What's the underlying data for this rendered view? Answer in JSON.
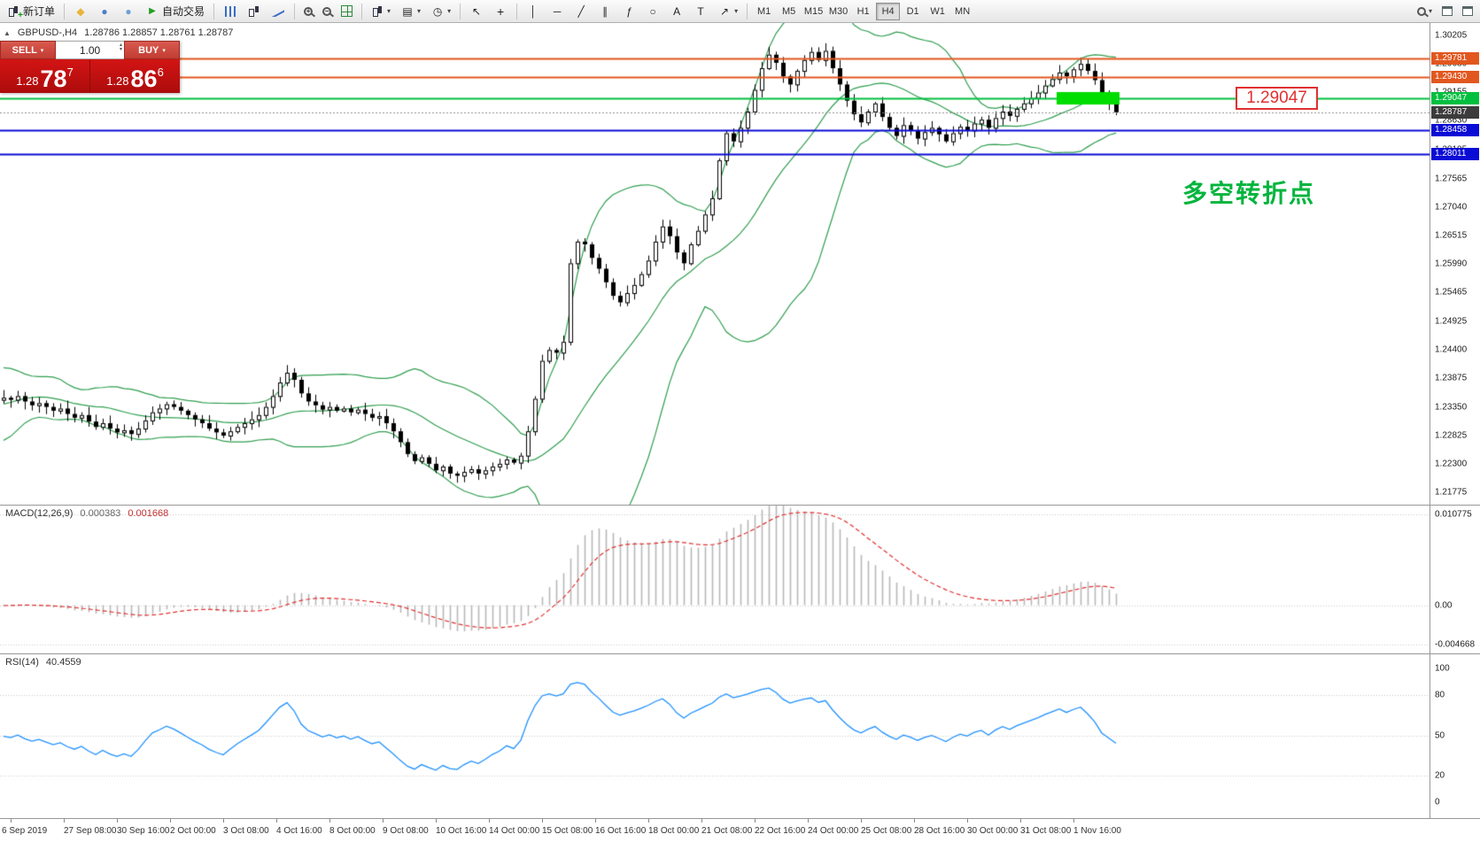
{
  "toolbar": {
    "new_order_label": "新订单",
    "auto_trading_label": "自动交易",
    "timeframes": [
      "M1",
      "M5",
      "M15",
      "M30",
      "H1",
      "H4",
      "D1",
      "W1",
      "MN"
    ],
    "active_timeframe": "H4"
  },
  "icons": {
    "plus": "+",
    "minus": "−",
    "diamond": "◆",
    "circle": "●",
    "play": "▶",
    "caret": "▾",
    "cursor": "↖",
    "crosshair": "+",
    "vline": "│",
    "hline": "─",
    "trendline": "╱",
    "channel": "∥",
    "fibonacci": "ƒ",
    "ellipse": "○",
    "text": "A",
    "text_label": "T",
    "arrow": "↗",
    "clock": "◷",
    "layout": "▤",
    "spin_up": "▴",
    "spin_down": "▾",
    "expander": "▲"
  },
  "quote_panel": {
    "symbol_info": "GBPUSD-,H4",
    "ohlc_text": "1.28786 1.28857 1.28761 1.28787",
    "sell_label": "SELL",
    "buy_label": "BUY",
    "lot_size": "1.00",
    "sell_price_small": "1.28",
    "sell_price_big": "78",
    "sell_price_sup": "7",
    "buy_price_small": "1.28",
    "buy_price_big": "86",
    "buy_price_sup": "6"
  },
  "annotations": {
    "callout_price": "1.29047",
    "chinese_note": "多空转折点",
    "chinese_note_color": "#00b43c"
  },
  "macd_panel": {
    "label": "MACD(12,26,9)",
    "value_main": "0.000383",
    "value_signal": "0.001668",
    "ticks": [
      "0.010775",
      "0.00",
      "-0.004668"
    ]
  },
  "rsi_panel": {
    "label": "RSI(14)",
    "value": "40.4559",
    "ticks": [
      "100",
      "80",
      "50",
      "20",
      "0"
    ]
  },
  "time_axis": {
    "labels": [
      "6 Sep 2019",
      "27 Sep 08:00",
      "30 Sep 16:00",
      "2 Oct 00:00",
      "3 Oct 08:00",
      "4 Oct 16:00",
      "8 Oct 00:00",
      "9 Oct 08:00",
      "10 Oct 16:00",
      "14 Oct 00:00",
      "15 Oct 08:00",
      "16 Oct 16:00",
      "18 Oct 00:00",
      "21 Oct 08:00",
      "22 Oct 16:00",
      "24 Oct 00:00",
      "25 Oct 08:00",
      "28 Oct 16:00",
      "30 Oct 00:00",
      "31 Oct 08:00",
      "1 Nov 16:00"
    ]
  },
  "chart_data": {
    "type": "candlestick",
    "title": "GBPUSD-,H4",
    "symbol": "GBPUSD",
    "timeframe": "H4",
    "price_range": [
      1.21775,
      1.30205
    ],
    "y_ticks": [
      1.30205,
      1.2968,
      1.29155,
      1.2863,
      1.28105,
      1.27565,
      1.2704,
      1.26515,
      1.2599,
      1.25465,
      1.24925,
      1.244,
      1.23875,
      1.2335,
      1.22825,
      1.223,
      1.21775
    ],
    "closes": [
      1.2352,
      1.2348,
      1.2355,
      1.2345,
      1.2338,
      1.2342,
      1.2335,
      1.2328,
      1.2332,
      1.2322,
      1.2315,
      1.232,
      1.2308,
      1.2298,
      1.2305,
      1.2295,
      1.2288,
      1.2292,
      1.2285,
      1.2295,
      1.231,
      1.2325,
      1.2332,
      1.234,
      1.2335,
      1.2328,
      1.232,
      1.2312,
      1.2305,
      1.2295,
      1.2288,
      1.2282,
      1.229,
      1.2298,
      1.2305,
      1.2312,
      1.232,
      1.2335,
      1.2355,
      1.238,
      1.2398,
      1.2385,
      1.236,
      1.2345,
      1.2338,
      1.233,
      1.2335,
      1.2328,
      1.2332,
      1.2325,
      1.233,
      1.2322,
      1.2315,
      1.2318,
      1.2305,
      1.229,
      1.227,
      1.2248,
      1.2235,
      1.2242,
      1.223,
      1.2218,
      1.2225,
      1.2212,
      1.2208,
      1.2215,
      1.222,
      1.2212,
      1.2218,
      1.2225,
      1.223,
      1.2238,
      1.2232,
      1.2245,
      1.229,
      1.235,
      1.242,
      1.244,
      1.2435,
      1.2455,
      1.26,
      1.264,
      1.2635,
      1.261,
      1.259,
      1.2565,
      1.254,
      1.2528,
      1.2545,
      1.256,
      1.258,
      1.2605,
      1.264,
      1.2668,
      1.265,
      1.262,
      1.26,
      1.2635,
      1.266,
      1.269,
      1.272,
      1.279,
      1.284,
      1.2825,
      1.285,
      1.288,
      1.292,
      1.296,
      1.2985,
      1.297,
      1.2945,
      1.293,
      1.2955,
      1.2975,
      1.299,
      1.2975,
      1.2992,
      1.296,
      1.293,
      1.29,
      1.2875,
      1.286,
      1.288,
      1.2895,
      1.287,
      1.285,
      1.2835,
      1.2855,
      1.2845,
      1.283,
      1.2842,
      1.285,
      1.2838,
      1.2825,
      1.284,
      1.2852,
      1.2845,
      1.2858,
      1.2865,
      1.285,
      1.2868,
      1.288,
      1.2872,
      1.2885,
      1.2895,
      1.2905,
      1.2915,
      1.2928,
      1.294,
      1.2952,
      1.2945,
      1.2958,
      1.2968,
      1.2955,
      1.2938,
      1.291,
      1.2895,
      1.28787
    ],
    "warmup_closes": [
      1.2405,
      1.239,
      1.237,
      1.2345,
      1.232,
      1.2298,
      1.2282,
      1.227,
      1.2278,
      1.2295,
      1.2315,
      1.2338,
      1.236,
      1.2378,
      1.2392,
      1.24,
      1.2388,
      1.237,
      1.2348,
      1.2325,
      1.2305,
      1.2288,
      1.2275,
      1.2282,
      1.23,
      1.2322,
      1.2345,
      1.2365,
      1.2382,
      1.2395,
      1.2385,
      1.2368,
      1.235,
      1.233,
      1.2312,
      1.234,
      1.2355,
      1.2362,
      1.235,
      1.2348
    ],
    "levels": [
      {
        "role": "resistance-1",
        "price": 1.29781,
        "label": "1.29781",
        "color": "#e2571f",
        "badge": "#e2571f",
        "width": 2,
        "style": "solid"
      },
      {
        "role": "resistance-2",
        "price": 1.2943,
        "label": "1.29430",
        "color": "#e2571f",
        "badge": "#e2571f",
        "width": 2,
        "style": "solid"
      },
      {
        "role": "pivot",
        "price": 1.29047,
        "label": "1.29047",
        "color": "#00bf3f",
        "badge": "#00bf3f",
        "width": 2,
        "style": "solid"
      },
      {
        "role": "bid",
        "price": 1.28787,
        "label": "1.28787",
        "color": "#909090",
        "badge": "#3c3c3c",
        "width": 1,
        "style": "dotted"
      },
      {
        "role": "support-1",
        "price": 1.28458,
        "label": "1.28458",
        "color": "#0b0bd6",
        "badge": "#0b0bd6",
        "width": 2,
        "style": "solid"
      },
      {
        "role": "support-2",
        "price": 1.28011,
        "label": "1.28011",
        "color": "#0b0bd6",
        "badge": "#0b0bd6",
        "width": 2,
        "style": "solid"
      }
    ],
    "highlight_rect": {
      "from_index": 149,
      "to_index": 157,
      "price_top": 1.2916,
      "price_bottom": 1.2893,
      "color": "#00dd00"
    },
    "indicators": {
      "bollinger": {
        "period": 20,
        "deviation": 2,
        "color": "#2f9e4f"
      },
      "macd": {
        "fast": 12,
        "slow": 26,
        "signal": 9,
        "histogram_color": "#b8b8b8",
        "signal_color": "#e03030",
        "range": [
          -0.004668,
          0.010775
        ]
      },
      "rsi": {
        "period": 14,
        "color": "#1e90ff",
        "range": [
          0,
          100
        ],
        "levels": [
          20,
          50,
          80
        ]
      }
    }
  }
}
